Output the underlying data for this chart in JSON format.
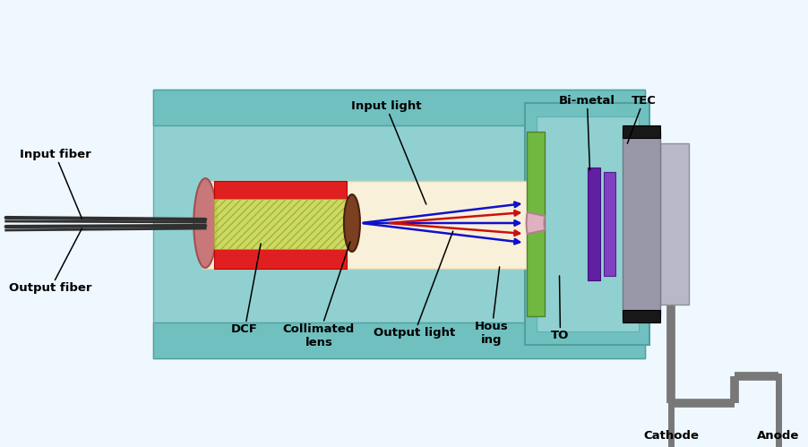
{
  "bg_color": "#f0f8ff",
  "colors": {
    "teal_light": "#90d0d0",
    "teal_mid": "#70c0c0",
    "teal_dark": "#50b0b0",
    "tube_bg": "#f8f0d8",
    "tube_edge": "#e0d0a0",
    "red_strip": "#e02020",
    "hatch_fill": "#c8d858",
    "hatch_edge": "#a0b030",
    "pink_end": "#c87878",
    "pink_end_edge": "#a05050",
    "green_plate": "#70b840",
    "pink_mirror": "#e0b0c0",
    "pink_mirror_edge": "#b08090",
    "purple_bar1": "#6020a0",
    "purple_bar2": "#8040c0",
    "gray_can": "#9898a8",
    "gray_can_light": "#b8b8c8",
    "black_block": "#181818",
    "wire_color": "#787878",
    "fiber_color": "#303030",
    "arrow_blue": "#1010cc",
    "arrow_red": "#cc1010",
    "annotation_line": "#000000",
    "white": "#ffffff",
    "outer_teal_strip": "#80c8c8"
  },
  "labels": {
    "input_fiber": "Input fiber",
    "output_fiber": "Output fiber",
    "dcf": "DCF",
    "collimated_lens": "Collimated\nlens",
    "input_light": "Input light",
    "output_light": "Output light",
    "housing": "Hous\ning",
    "to": "TO",
    "bi_metal": "Bi-metal",
    "tec": "TEC",
    "cathode": "Cathode",
    "anode": "Anode"
  },
  "layout": {
    "fig_w": 9.02,
    "fig_h": 4.99,
    "dpi": 100
  }
}
